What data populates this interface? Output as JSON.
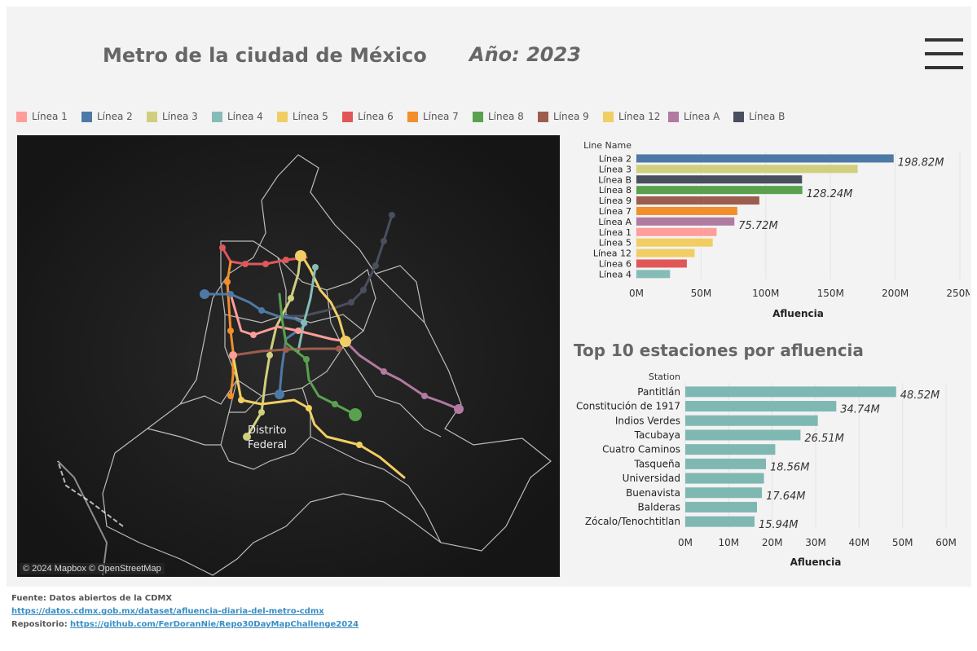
{
  "header": {
    "title": "Metro de la ciudad de México",
    "year_label": "Año: 2023"
  },
  "legend": [
    {
      "label": "Línea 1",
      "color": "#ff9d9a"
    },
    {
      "label": "Línea 2",
      "color": "#4e79a7"
    },
    {
      "label": "Línea 3",
      "color": "#cfcf7e"
    },
    {
      "label": "Línea 4",
      "color": "#86bcb6"
    },
    {
      "label": "Línea 5",
      "color": "#f1ce63"
    },
    {
      "label": "Línea 6",
      "color": "#e15759"
    },
    {
      "label": "Línea 7",
      "color": "#f28e2b"
    },
    {
      "label": "Línea 8",
      "color": "#59a14f"
    },
    {
      "label": "Línea 9",
      "color": "#9c5d4e"
    },
    {
      "label": "Línea 12",
      "color": "#f1ce63"
    },
    {
      "label": "Línea A",
      "color": "#b07aa1"
    },
    {
      "label": "Línea B",
      "color": "#494f5e"
    }
  ],
  "map": {
    "place_label_1": "Distrito",
    "place_label_2": "Federal",
    "attribution": "© 2024 Mapbox © OpenStreetMap"
  },
  "chart_data": [
    {
      "type": "bar",
      "orientation": "horizontal",
      "row_header": "Line Name",
      "categories": [
        "Línea 2",
        "Línea 3",
        "Línea B",
        "Línea 8",
        "Línea 9",
        "Línea 7",
        "Línea A",
        "Línea 1",
        "Línea 5",
        "Línea 12",
        "Línea 6",
        "Línea 4"
      ],
      "values": [
        198.82,
        171,
        128,
        128.24,
        95,
        78,
        75.72,
        62,
        59,
        45,
        39,
        26
      ],
      "colors": [
        "#4e79a7",
        "#cfcf7e",
        "#494f5e",
        "#59a14f",
        "#9c5d4e",
        "#f28e2b",
        "#b07aa1",
        "#ff9d9a",
        "#f1ce63",
        "#f1ce63",
        "#e15759",
        "#86bcb6"
      ],
      "data_labels": {
        "0": "198.82M",
        "3": "128.24M",
        "6": "75.72M"
      },
      "xlabel": "Afluencia",
      "xticks": [
        "0M",
        "50M",
        "100M",
        "150M",
        "200M",
        "250M"
      ],
      "xlim": [
        0,
        250
      ],
      "unit": "M"
    },
    {
      "type": "bar",
      "orientation": "horizontal",
      "title": "Top 10 estaciones por afluencia",
      "row_header": "Station",
      "categories": [
        "Pantitlán",
        "Constitución de 1917",
        "Indios Verdes",
        "Tacubaya",
        "Cuatro Caminos",
        "Tasqueña",
        "Universidad",
        "Buenavista",
        "Balderas",
        "Zócalo/Tenochtitlan"
      ],
      "values": [
        48.52,
        34.74,
        30.5,
        26.51,
        20.7,
        18.56,
        18.1,
        17.64,
        16.5,
        15.94
      ],
      "color": "#7fb8b2",
      "data_labels": {
        "0": "48.52M",
        "1": "34.74M",
        "3": "26.51M",
        "5": "18.56M",
        "7": "17.64M",
        "9": "15.94M"
      },
      "xlabel": "Afluencia",
      "xticks": [
        "0M",
        "10M",
        "20M",
        "30M",
        "40M",
        "50M",
        "60M"
      ],
      "xlim": [
        0,
        60
      ],
      "unit": "M"
    }
  ],
  "footer": {
    "source_label": "Fuente: Datos abiertos de la CDMX",
    "source_url": "https://datos.cdmx.gob.mx/dataset/afluencia-diaria-del-metro-cdmx",
    "repo_label": "Repositorio:",
    "repo_url": "https://github.com/FerDoranNie/Repo30DayMapChallenge2024"
  }
}
